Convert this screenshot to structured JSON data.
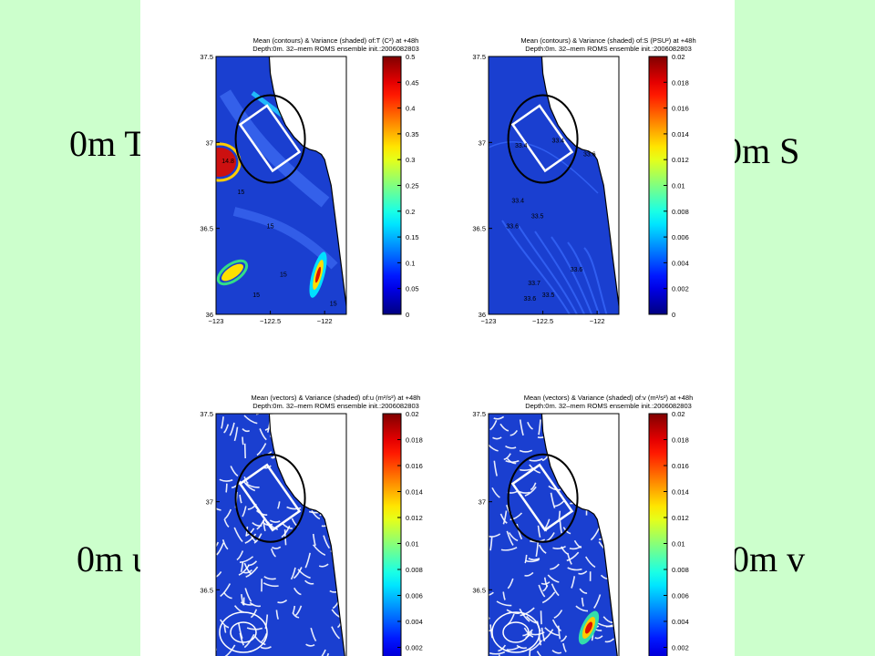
{
  "slide_labels": {
    "top_left": "0m T",
    "top_right": "0m S",
    "bottom_left": "0m u",
    "bottom_right": "0m v"
  },
  "colors": {
    "background": "#ccffcc",
    "panel": "#ffffff",
    "field_blue": "#1a3fd0",
    "land": "#ffffff"
  },
  "chart_data": [
    {
      "type": "heatmap",
      "id": "T",
      "title": "Mean (contours) & Variance (shaded) of:T (C²) at +48h",
      "subtitle": "Depth:0m. 32–mem ROMS ensemble init.:2006082803",
      "xlim": [
        -123,
        -121.8
      ],
      "ylim": [
        36,
        37.5
      ],
      "x_ticks": [
        "−123",
        "−122.5",
        "−122"
      ],
      "y_ticks": [
        "37.5",
        "37",
        "36.5",
        "36"
      ],
      "colorbar_ticks": [
        "0.5",
        "0.45",
        "0.4",
        "0.35",
        "0.3",
        "0.25",
        "0.2",
        "0.15",
        "0.1",
        "0.05",
        "0"
      ],
      "contour_labels": [
        {
          "text": "14.8",
          "lon": -122.89,
          "lat": 36.88
        },
        {
          "text": "15",
          "lon": -122.77,
          "lat": 36.7
        },
        {
          "text": "15",
          "lon": -122.5,
          "lat": 36.5
        },
        {
          "text": "15",
          "lon": -122.38,
          "lat": 36.22
        },
        {
          "text": "15",
          "lon": -122.63,
          "lat": 36.1
        },
        {
          "text": "15",
          "lon": -121.92,
          "lat": 36.05
        }
      ]
    },
    {
      "type": "heatmap",
      "id": "S",
      "title": "Mean (contours) & Variance (shaded) of:S (PSU²) at +48h",
      "subtitle": "Depth:0m. 32–mem ROMS ensemble init.:2006082803",
      "xlim": [
        -123,
        -121.8
      ],
      "ylim": [
        36,
        37.5
      ],
      "x_ticks": [
        "−123",
        "−122.5",
        "−122"
      ],
      "y_ticks": [
        "37.5",
        "37",
        "36.5",
        "36"
      ],
      "colorbar_ticks": [
        "0.02",
        "0.018",
        "0.016",
        "0.014",
        "0.012",
        "0.01",
        "0.008",
        "0.006",
        "0.004",
        "0.002",
        "0"
      ],
      "contour_labels": [
        {
          "text": "33.4",
          "lon": -122.7,
          "lat": 36.97
        },
        {
          "text": "33.4",
          "lon": -122.36,
          "lat": 37.0
        },
        {
          "text": "33.6",
          "lon": -122.07,
          "lat": 36.92
        },
        {
          "text": "33.4",
          "lon": -122.73,
          "lat": 36.65
        },
        {
          "text": "33.5",
          "lon": -122.55,
          "lat": 36.56
        },
        {
          "text": "33.6",
          "lon": -122.78,
          "lat": 36.5
        },
        {
          "text": "33.6",
          "lon": -122.19,
          "lat": 36.25
        },
        {
          "text": "33.7",
          "lon": -122.58,
          "lat": 36.17
        },
        {
          "text": "33.6",
          "lon": -122.62,
          "lat": 36.08
        },
        {
          "text": "33.5",
          "lon": -122.45,
          "lat": 36.1
        }
      ]
    },
    {
      "type": "heatmap",
      "id": "u",
      "title": "Mean (vectors) & Variance (shaded) of:u (m²/s²) at +48h",
      "subtitle": "Depth:0m. 32–mem ROMS ensemble init.:2006082803",
      "xlim": [
        -123,
        -121.8
      ],
      "ylim": [
        36,
        37.5
      ],
      "y_ticks": [
        "37.5",
        "37",
        "36.5"
      ],
      "colorbar_ticks": [
        "0.02",
        "0.018",
        "0.016",
        "0.014",
        "0.012",
        "0.01",
        "0.008",
        "0.006",
        "0.004",
        "0.002"
      ]
    },
    {
      "type": "heatmap",
      "id": "v",
      "title": "Mean (vectors) & Variance (shaded) of:v (m²/s²) at +48h",
      "subtitle": "Depth:0m. 32–mem ROMS ensemble init.:2006082803",
      "xlim": [
        -123,
        -121.8
      ],
      "ylim": [
        36,
        37.5
      ],
      "y_ticks": [
        "37.5",
        "37",
        "36.5"
      ],
      "colorbar_ticks": [
        "0.02",
        "0.018",
        "0.016",
        "0.014",
        "0.012",
        "0.01",
        "0.008",
        "0.006",
        "0.004",
        "0.002"
      ]
    }
  ]
}
